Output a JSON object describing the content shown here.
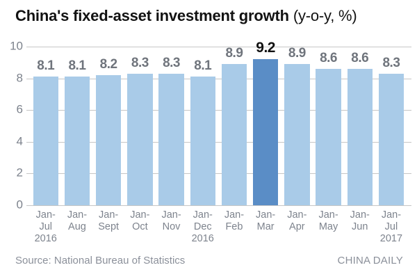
{
  "title": {
    "main": "China's fixed-asset investment growth",
    "suffix": " (y-o-y, %)"
  },
  "footer": {
    "source": "Source: National Bureau of Statistics",
    "credit": "CHINA DAILY"
  },
  "colors": {
    "background": "#ffffff",
    "bar": "#a9cbe8",
    "bar_highlight": "#5a8dc6",
    "gridline": "#c6c6c6",
    "axis_text": "#7d838d",
    "value_text": "#6f747c",
    "value_text_highlight": "#111111",
    "title_text": "#121212",
    "footer_text": "#8b909a"
  },
  "chart_data": {
    "type": "bar",
    "title": "China's fixed-asset investment growth (y-o-y, %)",
    "xlabel": "",
    "ylabel": "",
    "ylim": [
      0,
      10
    ],
    "yticks": [
      0,
      2,
      4,
      6,
      8,
      10
    ],
    "grid": true,
    "legend_position": "none",
    "categories": [
      "Jan-Jul 2016",
      "Jan-Aug",
      "Jan-Sept",
      "Jan-Oct",
      "Jan-Nov",
      "Jan-Dec 2016",
      "Jan-Feb",
      "Jan-Mar",
      "Jan-Apr",
      "Jan-May",
      "Jan-Jun",
      "Jan-Jul 2017"
    ],
    "category_lines": [
      [
        "Jan-",
        "Jul",
        "2016"
      ],
      [
        "Jan-",
        "Aug"
      ],
      [
        "Jan-",
        "Sept"
      ],
      [
        "Jan-",
        "Oct"
      ],
      [
        "Jan-",
        "Nov"
      ],
      [
        "Jan-",
        "Dec",
        "2016"
      ],
      [
        "Jan-",
        "Feb"
      ],
      [
        "Jan-",
        "Mar"
      ],
      [
        "Jan-",
        "Apr"
      ],
      [
        "Jan-",
        "May"
      ],
      [
        "Jan-",
        "Jun"
      ],
      [
        "Jan-",
        "Jul",
        "2017"
      ]
    ],
    "values": [
      8.1,
      8.1,
      8.2,
      8.3,
      8.3,
      8.1,
      8.9,
      9.2,
      8.9,
      8.6,
      8.6,
      8.3
    ],
    "highlight_index": 7
  }
}
